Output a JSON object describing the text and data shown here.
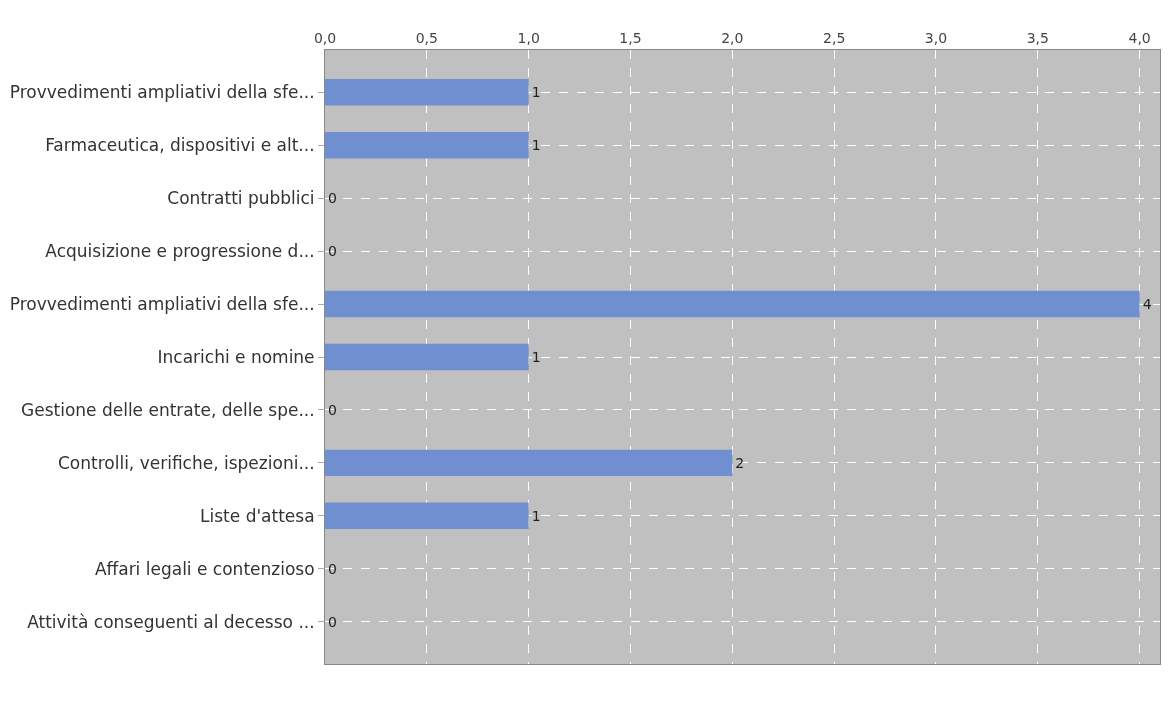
{
  "chart_data": {
    "type": "bar",
    "orientation": "horizontal",
    "categories": [
      "Provvedimenti ampliativi della sfe...",
      "Farmaceutica, dispositivi e alt...",
      "Contratti pubblici",
      "Acquisizione e progressione d...",
      "Provvedimenti ampliativi della sfe...",
      "Incarichi e nomine",
      "Gestione delle entrate, delle spe...",
      "Controlli, verifiche, ispezioni...",
      "Liste d'attesa",
      "Affari legali e contenzioso",
      "Attività conseguenti al decesso ..."
    ],
    "values": [
      1,
      1,
      0,
      0,
      4,
      1,
      0,
      2,
      1,
      0,
      0
    ],
    "color": "#6f8fd0",
    "xlim": [
      0,
      4.1
    ],
    "xticks": [
      {
        "value": 0,
        "label": "0,0"
      },
      {
        "value": 0.5,
        "label": "0,5"
      },
      {
        "value": 1,
        "label": "1,0"
      },
      {
        "value": 1.5,
        "label": "1,5"
      },
      {
        "value": 2,
        "label": "2,0"
      },
      {
        "value": 2.5,
        "label": "2,5"
      },
      {
        "value": 3,
        "label": "3,0"
      },
      {
        "value": 3.5,
        "label": "3,5"
      },
      {
        "value": 4,
        "label": "4,0"
      }
    ],
    "data_labels": true,
    "grid": true
  }
}
